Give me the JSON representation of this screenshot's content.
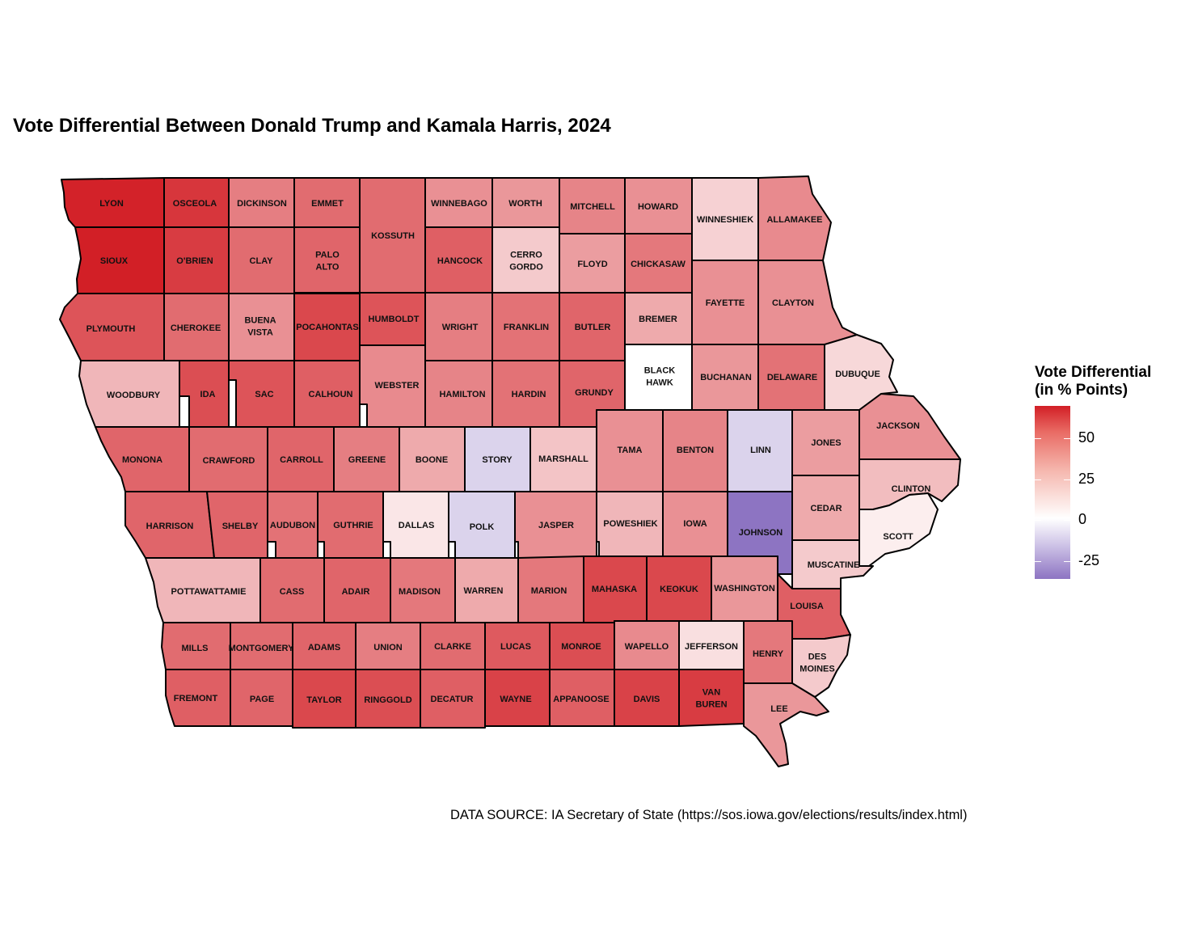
{
  "chart_data": {
    "type": "choropleth",
    "title": "Vote Differential Between Donald Trump and Kamala Harris, 2024",
    "source": "DATA SOURCE: IA Secretary of State (https://sos.iowa.gov/elections/results/index.html)",
    "legend": {
      "title_line1": "Vote Differential",
      "title_line2": "(in % Points)",
      "ticks": [
        "50",
        "25",
        "0",
        "-25"
      ],
      "tick_values": [
        50,
        25,
        0,
        -25
      ],
      "range": [
        -36,
        70
      ],
      "colors": {
        "high": "#d21f26",
        "mid": "#ffffff",
        "low": "#8d74c2"
      }
    },
    "counties": [
      {
        "name": "LYON",
        "value": 69
      },
      {
        "name": "OSCEOLA",
        "value": 62
      },
      {
        "name": "DICKINSON",
        "value": 38
      },
      {
        "name": "EMMET",
        "value": 44
      },
      {
        "name": "KOSSUTH",
        "value": 44
      },
      {
        "name": "WINNEBAGO",
        "value": 32
      },
      {
        "name": "WORTH",
        "value": 30
      },
      {
        "name": "MITCHELL",
        "value": 36
      },
      {
        "name": "HOWARD",
        "value": 32
      },
      {
        "name": "WINNESHIEK",
        "value": 12
      },
      {
        "name": "ALLAMAKEE",
        "value": 34
      },
      {
        "name": "SIOUX",
        "value": 72
      },
      {
        "name": "O'BRIEN",
        "value": 60
      },
      {
        "name": "CLAY",
        "value": 44
      },
      {
        "name": "PALO ALTO",
        "value": 46
      },
      {
        "name": "HANCOCK",
        "value": 48
      },
      {
        "name": "CERRO GORDO",
        "value": 14
      },
      {
        "name": "FLOYD",
        "value": 28
      },
      {
        "name": "CHICKASAW",
        "value": 40
      },
      {
        "name": "FAYETTE",
        "value": 32
      },
      {
        "name": "CLAYTON",
        "value": 32
      },
      {
        "name": "PLYMOUTH",
        "value": 52
      },
      {
        "name": "CHEROKEE",
        "value": 44
      },
      {
        "name": "BUENA VISTA",
        "value": 32
      },
      {
        "name": "POCAHONTAS",
        "value": 56
      },
      {
        "name": "HUMBOLDT",
        "value": 52
      },
      {
        "name": "WRIGHT",
        "value": 38
      },
      {
        "name": "FRANKLIN",
        "value": 42
      },
      {
        "name": "BUTLER",
        "value": 46
      },
      {
        "name": "BREMER",
        "value": 24
      },
      {
        "name": "WOODBURY",
        "value": 20
      },
      {
        "name": "IDA",
        "value": 54
      },
      {
        "name": "SAC",
        "value": 52
      },
      {
        "name": "CALHOUN",
        "value": 48
      },
      {
        "name": "WEBSTER",
        "value": 34
      },
      {
        "name": "HAMILTON",
        "value": 36
      },
      {
        "name": "HARDIN",
        "value": 42
      },
      {
        "name": "GRUNDY",
        "value": 46
      },
      {
        "name": "BLACK HAWK",
        "value": 0
      },
      {
        "name": "BUCHANAN",
        "value": 30
      },
      {
        "name": "DELAWARE",
        "value": 42
      },
      {
        "name": "DUBUQUE",
        "value": 10
      },
      {
        "name": "MONONA",
        "value": 46
      },
      {
        "name": "CRAWFORD",
        "value": 44
      },
      {
        "name": "CARROLL",
        "value": 46
      },
      {
        "name": "GREENE",
        "value": 38
      },
      {
        "name": "BOONE",
        "value": 24
      },
      {
        "name": "STORY",
        "value": -10
      },
      {
        "name": "MARSHALL",
        "value": 16
      },
      {
        "name": "TAMA",
        "value": 32
      },
      {
        "name": "BENTON",
        "value": 36
      },
      {
        "name": "LINN",
        "value": -10
      },
      {
        "name": "JONES",
        "value": 28
      },
      {
        "name": "JACKSON",
        "value": 32
      },
      {
        "name": "HARRISON",
        "value": 46
      },
      {
        "name": "SHELBY",
        "value": 46
      },
      {
        "name": "AUDUBON",
        "value": 42
      },
      {
        "name": "GUTHRIE",
        "value": 44
      },
      {
        "name": "DALLAS",
        "value": 6
      },
      {
        "name": "POLK",
        "value": -10
      },
      {
        "name": "JASPER",
        "value": 32
      },
      {
        "name": "POWESHIEK",
        "value": 20
      },
      {
        "name": "IOWA",
        "value": 32
      },
      {
        "name": "JOHNSON",
        "value": -36
      },
      {
        "name": "CEDAR",
        "value": 24
      },
      {
        "name": "CLINTON",
        "value": 18
      },
      {
        "name": "SCOTT",
        "value": 4
      },
      {
        "name": "MUSCATINE",
        "value": 14
      },
      {
        "name": "POTTAWATTAMIE",
        "value": 20
      },
      {
        "name": "CASS",
        "value": 44
      },
      {
        "name": "ADAIR",
        "value": 46
      },
      {
        "name": "MADISON",
        "value": 40
      },
      {
        "name": "WARREN",
        "value": 24
      },
      {
        "name": "MARION",
        "value": 40
      },
      {
        "name": "MAHASKA",
        "value": 56
      },
      {
        "name": "KEOKUK",
        "value": 56
      },
      {
        "name": "WASHINGTON",
        "value": 30
      },
      {
        "name": "LOUISA",
        "value": 48
      },
      {
        "name": "MILLS",
        "value": 44
      },
      {
        "name": "MONTGOMERY",
        "value": 44
      },
      {
        "name": "ADAMS",
        "value": 46
      },
      {
        "name": "UNION",
        "value": 38
      },
      {
        "name": "CLARKE",
        "value": 44
      },
      {
        "name": "LUCAS",
        "value": 50
      },
      {
        "name": "MONROE",
        "value": 54
      },
      {
        "name": "WAPELLO",
        "value": 34
      },
      {
        "name": "JEFFERSON",
        "value": 8
      },
      {
        "name": "HENRY",
        "value": 40
      },
      {
        "name": "DES MOINES",
        "value": 14
      },
      {
        "name": "FREMONT",
        "value": 48
      },
      {
        "name": "PAGE",
        "value": 46
      },
      {
        "name": "TAYLOR",
        "value": 56
      },
      {
        "name": "RINGGOLD",
        "value": 54
      },
      {
        "name": "DECATUR",
        "value": 48
      },
      {
        "name": "WAYNE",
        "value": 58
      },
      {
        "name": "APPANOOSE",
        "value": 48
      },
      {
        "name": "DAVIS",
        "value": 58
      },
      {
        "name": "VAN BUREN",
        "value": 60
      },
      {
        "name": "LEE",
        "value": 30
      }
    ]
  }
}
